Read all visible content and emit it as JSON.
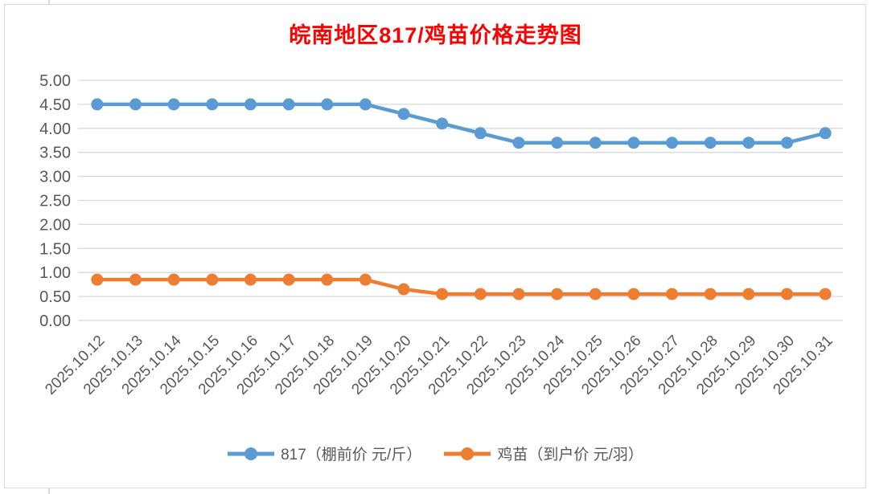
{
  "window": {
    "background": "#ffffff",
    "frame_color": "#d9d9d9"
  },
  "chart_data": {
    "type": "line",
    "title": "皖南地区817/鸡苗价格走势图",
    "title_color": "#ff0000",
    "categories": [
      "2025.10.12",
      "2025.10.13",
      "2025.10.14",
      "2025.10.15",
      "2025.10.16",
      "2025.10.17",
      "2025.10.18",
      "2025.10.19",
      "2025.10.20",
      "2025.10.21",
      "2025.10.22",
      "2025.10.23",
      "2025.10.24",
      "2025.10.25",
      "2025.10.26",
      "2025.10.27",
      "2025.10.28",
      "2025.10.29",
      "2025.10.30",
      "2025.10.31"
    ],
    "series": [
      {
        "name": "817（棚前价 元/斤）",
        "color": "#5b9bd5",
        "marker": "circle",
        "values": [
          4.5,
          4.5,
          4.5,
          4.5,
          4.5,
          4.5,
          4.5,
          4.5,
          4.3,
          4.1,
          3.9,
          3.7,
          3.7,
          3.7,
          3.7,
          3.7,
          3.7,
          3.7,
          3.7,
          3.9
        ]
      },
      {
        "name": "鸡苗（到户价 元/羽）",
        "color": "#ed7d31",
        "marker": "circle",
        "values": [
          0.85,
          0.85,
          0.85,
          0.85,
          0.85,
          0.85,
          0.85,
          0.85,
          0.65,
          0.55,
          0.55,
          0.55,
          0.55,
          0.55,
          0.55,
          0.55,
          0.55,
          0.55,
          0.55,
          0.55
        ]
      }
    ],
    "ylim": [
      0,
      5
    ],
    "ytick_step": 0.5,
    "y_ticks": [
      "5.00",
      "4.50",
      "4.00",
      "3.50",
      "3.00",
      "2.50",
      "2.00",
      "1.50",
      "1.00",
      "0.50",
      "0.00"
    ],
    "xlabel": "",
    "ylabel": "",
    "x_label_rotation_deg": 45,
    "grid": true,
    "grid_color": "#d9d9d9",
    "axis_text_color": "#595959",
    "legend_position": "bottom"
  }
}
